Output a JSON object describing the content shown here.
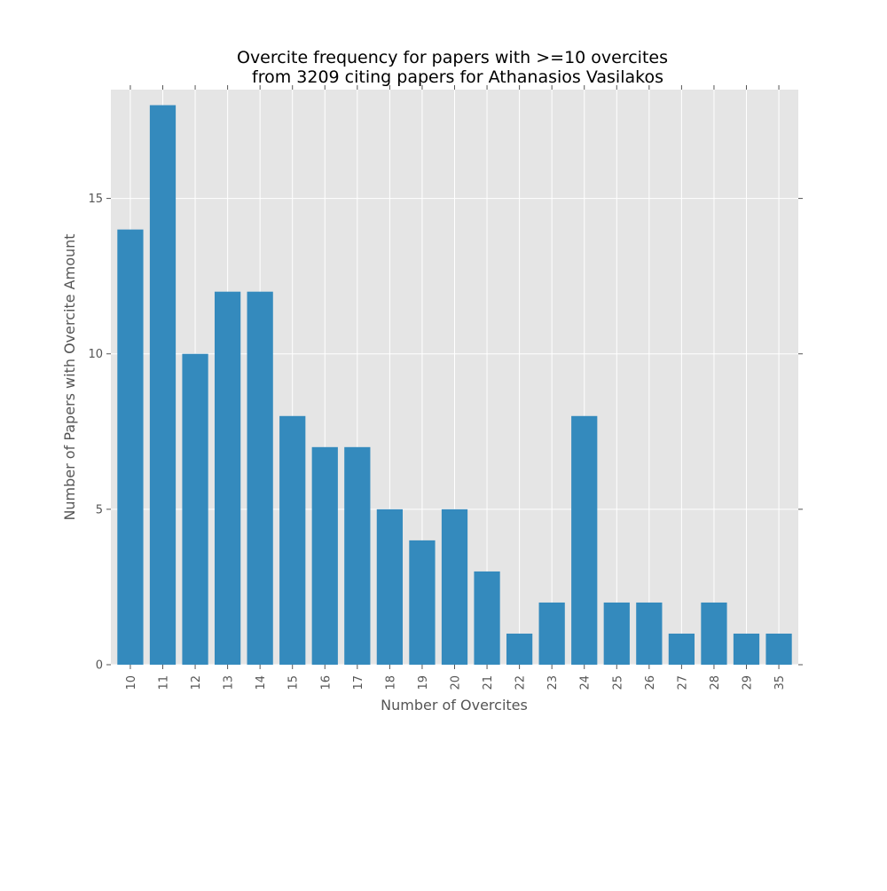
{
  "chart_data": {
    "type": "bar",
    "title_line1": "Overcite frequency for papers with >=10 overcites",
    "title_line2": "from 3209 citing papers for Athanasios Vasilakos",
    "xlabel": "Number of Overcites",
    "ylabel": "Number of Papers with Overcite Amount",
    "categories": [
      "10",
      "11",
      "12",
      "13",
      "14",
      "15",
      "16",
      "17",
      "18",
      "19",
      "20",
      "21",
      "22",
      "23",
      "24",
      "25",
      "26",
      "27",
      "28",
      "29",
      "35"
    ],
    "values": [
      14,
      18,
      10,
      12,
      12,
      8,
      7,
      7,
      5,
      4,
      5,
      3,
      1,
      2,
      8,
      2,
      2,
      1,
      2,
      1,
      1
    ],
    "ylim": [
      0,
      18.5
    ],
    "yticks": [
      0,
      5,
      10,
      15
    ],
    "grid": true,
    "bar_color": "#348abd",
    "plot_background": "#e5e5e5",
    "grid_color": "#ffffff",
    "text_color": "#555555"
  }
}
